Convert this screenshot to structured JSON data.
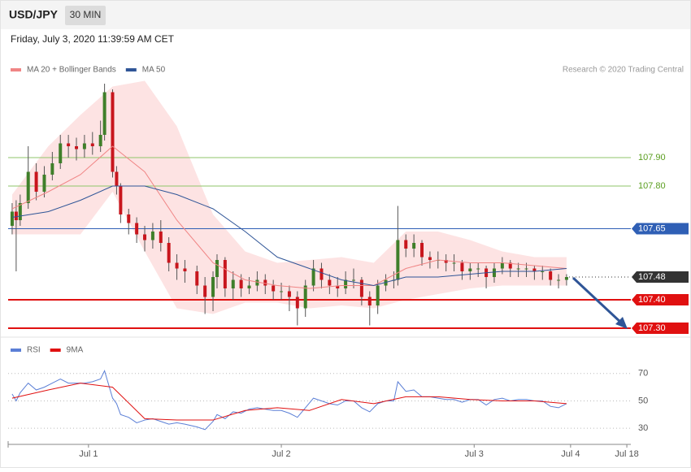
{
  "header": {
    "symbol": "USD/JPY",
    "interval": "30 MIN",
    "timestamp": "Friday, July 3, 2020 11:39:59 AM CET",
    "credit": "Research © 2020 Trading Central"
  },
  "chart_data": [
    {
      "type": "candlestick",
      "xlim": [
        -1,
        154
      ],
      "ylim": [
        107.28,
        108.17
      ],
      "up_color": "#3f7f2a",
      "down_color": "#c8161d",
      "x": [
        0,
        1,
        2,
        4,
        6,
        8,
        10,
        12,
        14,
        16,
        18,
        20,
        22,
        23,
        25,
        26,
        27,
        29,
        31,
        33,
        35,
        37,
        39,
        41,
        43,
        46,
        48,
        50,
        51,
        53,
        55,
        57,
        59,
        61,
        63,
        65,
        67,
        69,
        71,
        73,
        75,
        77,
        79,
        81,
        83,
        85,
        87,
        89,
        91,
        93,
        95,
        96,
        98,
        100,
        102,
        104,
        106,
        108,
        110,
        112,
        114,
        116,
        118,
        120,
        122,
        124,
        126,
        128,
        130,
        132,
        134,
        136,
        138
      ],
      "open": [
        107.66,
        107.71,
        107.68,
        107.74,
        107.85,
        107.78,
        107.84,
        107.88,
        107.95,
        107.94,
        107.93,
        107.95,
        107.94,
        107.98,
        108.13,
        107.85,
        107.8,
        107.7,
        107.67,
        107.63,
        107.61,
        107.64,
        107.6,
        107.53,
        107.51,
        107.5,
        107.45,
        107.41,
        107.48,
        107.54,
        107.44,
        107.47,
        107.44,
        107.45,
        107.47,
        107.45,
        107.43,
        107.43,
        107.41,
        107.37,
        107.45,
        107.51,
        107.47,
        107.45,
        107.44,
        107.47,
        107.47,
        107.41,
        107.38,
        107.45,
        107.47,
        107.47,
        107.61,
        107.58,
        107.6,
        107.55,
        107.54,
        107.54,
        107.53,
        107.53,
        107.5,
        107.51,
        107.51,
        107.48,
        107.51,
        107.53,
        107.51,
        107.51,
        107.51,
        107.5,
        107.5,
        107.47,
        107.47
      ],
      "high": [
        107.74,
        107.75,
        107.77,
        107.94,
        107.88,
        107.87,
        107.92,
        107.98,
        107.98,
        107.97,
        107.98,
        107.99,
        108.03,
        108.16,
        108.14,
        107.87,
        107.81,
        107.72,
        107.69,
        107.66,
        107.67,
        107.68,
        107.62,
        107.56,
        107.54,
        107.52,
        107.48,
        107.5,
        107.56,
        107.55,
        107.5,
        107.49,
        107.48,
        107.5,
        107.49,
        107.47,
        107.46,
        107.45,
        107.43,
        107.47,
        107.54,
        107.53,
        107.49,
        107.48,
        107.5,
        107.51,
        107.48,
        107.43,
        107.47,
        107.49,
        107.5,
        107.73,
        107.63,
        107.63,
        107.61,
        107.57,
        107.57,
        107.56,
        107.56,
        107.54,
        107.53,
        107.53,
        107.52,
        107.53,
        107.55,
        107.54,
        107.53,
        107.53,
        107.52,
        107.52,
        107.51,
        107.49,
        107.49
      ],
      "low": [
        107.63,
        107.5,
        107.66,
        107.72,
        107.75,
        107.76,
        107.82,
        107.86,
        107.9,
        107.89,
        107.9,
        107.91,
        107.92,
        107.96,
        107.83,
        107.77,
        107.67,
        107.63,
        107.6,
        107.57,
        107.58,
        107.57,
        107.5,
        107.47,
        107.46,
        107.42,
        107.35,
        107.36,
        107.44,
        107.41,
        107.4,
        107.41,
        107.42,
        107.43,
        107.42,
        107.4,
        107.4,
        107.36,
        107.31,
        107.34,
        107.43,
        107.44,
        107.42,
        107.41,
        107.42,
        107.44,
        107.38,
        107.31,
        107.35,
        107.43,
        107.44,
        107.45,
        107.55,
        107.55,
        107.52,
        107.51,
        107.51,
        107.5,
        107.5,
        107.47,
        107.47,
        107.48,
        107.44,
        107.46,
        107.49,
        107.48,
        107.48,
        107.48,
        107.47,
        107.47,
        107.45,
        107.44,
        107.45
      ],
      "close": [
        107.71,
        107.68,
        107.74,
        107.85,
        107.78,
        107.84,
        107.88,
        107.95,
        107.94,
        107.93,
        107.95,
        107.94,
        107.98,
        108.13,
        107.85,
        107.8,
        107.7,
        107.67,
        107.63,
        107.61,
        107.64,
        107.6,
        107.53,
        107.51,
        107.5,
        107.45,
        107.41,
        107.48,
        107.54,
        107.44,
        107.47,
        107.44,
        107.45,
        107.47,
        107.45,
        107.43,
        107.43,
        107.41,
        107.37,
        107.45,
        107.51,
        107.47,
        107.45,
        107.44,
        107.47,
        107.47,
        107.41,
        107.38,
        107.45,
        107.47,
        107.47,
        107.61,
        107.58,
        107.6,
        107.55,
        107.54,
        107.54,
        107.53,
        107.53,
        107.5,
        107.51,
        107.51,
        107.48,
        107.51,
        107.53,
        107.51,
        107.51,
        107.51,
        107.5,
        107.5,
        107.47,
        107.47,
        107.48
      ],
      "series": [
        {
          "name": "MA 20 + Bollinger Bands",
          "color": "#f08585",
          "band_color": "#fde3e3",
          "x": [
            0,
            9,
            17,
            25,
            33,
            41,
            50,
            58,
            66,
            74,
            82,
            90,
            98,
            106,
            114,
            122,
            130,
            138
          ],
          "values": [
            107.72,
            107.78,
            107.84,
            107.94,
            107.85,
            107.68,
            107.53,
            107.47,
            107.45,
            107.44,
            107.45,
            107.45,
            107.51,
            107.54,
            107.53,
            107.53,
            107.52,
            107.51
          ],
          "upper": [
            107.77,
            107.94,
            108.05,
            108.15,
            108.17,
            108.01,
            107.7,
            107.57,
            107.53,
            107.54,
            107.55,
            107.53,
            107.64,
            107.64,
            107.61,
            107.57,
            107.55,
            107.55
          ],
          "lower": [
            107.63,
            107.63,
            107.63,
            107.78,
            107.57,
            107.37,
            107.35,
            107.39,
            107.39,
            107.37,
            107.38,
            107.37,
            107.4,
            107.42,
            107.44,
            107.45,
            107.45,
            107.45
          ]
        },
        {
          "name": "MA 50",
          "color": "#2f5597",
          "x": [
            0,
            9,
            17,
            25,
            33,
            41,
            50,
            58,
            66,
            74,
            82,
            90,
            98,
            106,
            114,
            122,
            130,
            138
          ],
          "values": [
            107.69,
            107.71,
            107.75,
            107.8,
            107.8,
            107.77,
            107.72,
            107.64,
            107.55,
            107.51,
            107.47,
            107.45,
            107.48,
            107.48,
            107.49,
            107.5,
            107.5,
            107.51
          ]
        }
      ],
      "levels": [
        {
          "value": 107.9,
          "label": "107.90",
          "color": "#8fc46a",
          "style": "thin",
          "text_color": "#5a9e1f"
        },
        {
          "value": 107.8,
          "label": "107.80",
          "color": "#8fc46a",
          "style": "thin",
          "text_color": "#5a9e1f"
        },
        {
          "value": 107.65,
          "label": "107.65",
          "color": "#2f5fb5",
          "style": "tag",
          "text_color": "#ffffff"
        },
        {
          "value": 107.48,
          "label": "107.48",
          "color": "#333333",
          "style": "dotted",
          "text_color": "#ffffff"
        },
        {
          "value": 107.4,
          "label": "107.40",
          "color": "#e01010",
          "style": "tag",
          "text_color": "#ffffff"
        },
        {
          "value": 107.3,
          "label": "107.30",
          "color": "#e01010",
          "style": "tag",
          "text_color": "#ffffff"
        }
      ]
    },
    {
      "type": "line",
      "xlim": [
        -1,
        154
      ],
      "ylim": [
        20,
        77
      ],
      "yticks": [
        30,
        50,
        70
      ],
      "xticks": [
        {
          "value": 19,
          "label": "Jul 1"
        },
        {
          "value": 67,
          "label": "Jul 2"
        },
        {
          "value": 115,
          "label": "Jul 3"
        },
        {
          "value": 139,
          "label": "Jul 4"
        },
        {
          "value": 153,
          "label": "Jul 18"
        }
      ],
      "series": [
        {
          "name": "RSI",
          "color": "#5b7fd6",
          "x": [
            0,
            1,
            2,
            4,
            6,
            8,
            10,
            12,
            14,
            16,
            18,
            20,
            22,
            23,
            25,
            26,
            27,
            29,
            31,
            33,
            35,
            37,
            39,
            41,
            43,
            46,
            48,
            50,
            51,
            53,
            55,
            57,
            59,
            61,
            63,
            65,
            67,
            69,
            71,
            73,
            75,
            77,
            79,
            81,
            83,
            85,
            87,
            89,
            91,
            93,
            95,
            96,
            98,
            100,
            102,
            104,
            106,
            108,
            110,
            112,
            114,
            116,
            118,
            120,
            122,
            124,
            126,
            128,
            130,
            132,
            134,
            136,
            138
          ],
          "values": [
            55,
            50,
            56,
            63,
            58,
            60,
            63,
            66,
            63,
            63,
            63,
            64,
            66,
            72,
            52,
            48,
            40,
            38,
            34,
            36,
            37,
            35,
            33,
            34,
            33,
            31,
            29,
            35,
            40,
            37,
            42,
            41,
            44,
            45,
            44,
            43,
            43,
            41,
            38,
            45,
            52,
            50,
            48,
            47,
            50,
            50,
            45,
            42,
            48,
            50,
            50,
            64,
            57,
            58,
            53,
            53,
            52,
            51,
            51,
            49,
            51,
            51,
            47,
            51,
            52,
            50,
            51,
            51,
            50,
            50,
            46,
            45,
            48
          ]
        },
        {
          "name": "9MA",
          "color": "#e01010",
          "x": [
            0,
            9,
            17,
            25,
            33,
            41,
            50,
            58,
            66,
            74,
            82,
            90,
            98,
            106,
            114,
            122,
            130,
            138
          ],
          "values": [
            52,
            58,
            63,
            60,
            37,
            36,
            36,
            43,
            45,
            43,
            51,
            48,
            53,
            53,
            51,
            50,
            50,
            48
          ]
        }
      ]
    }
  ]
}
